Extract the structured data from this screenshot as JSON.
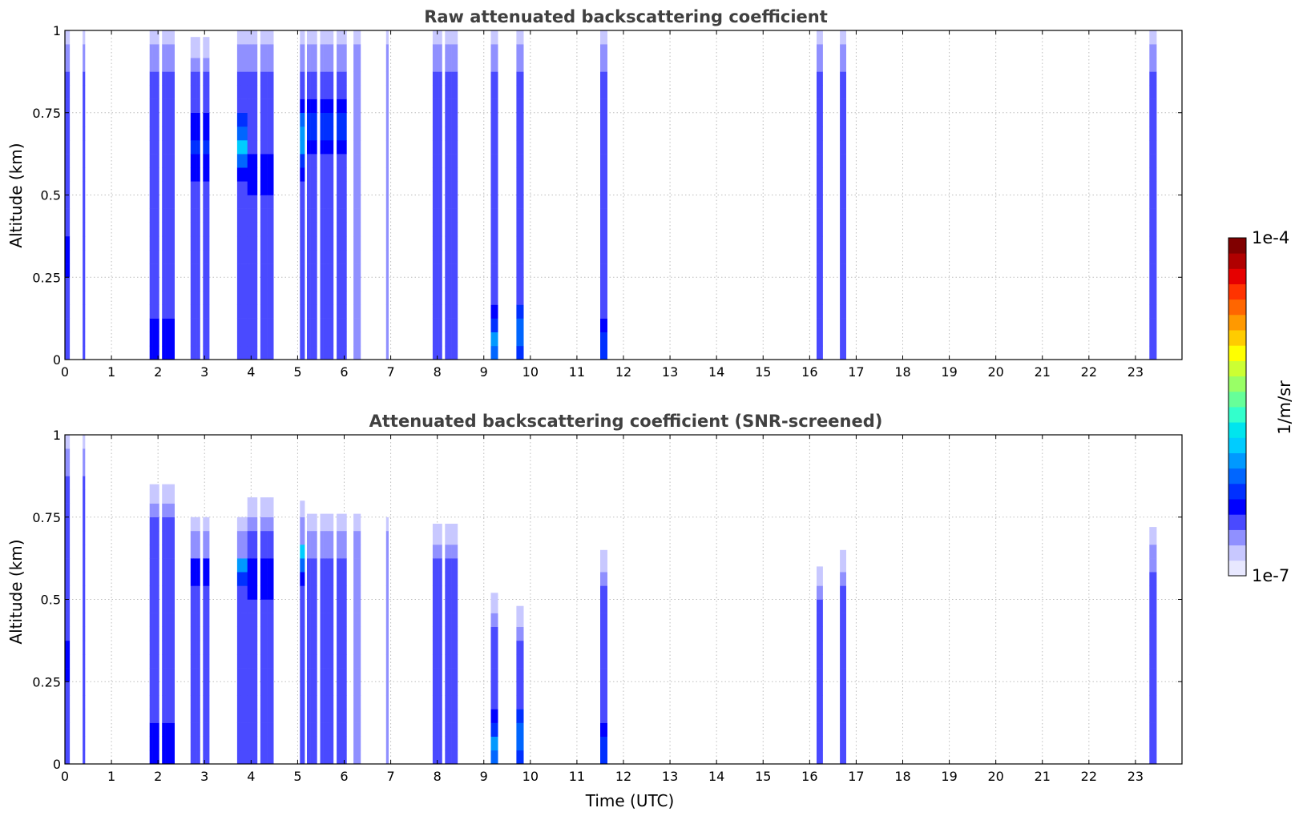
{
  "chart_data": [
    {
      "type": "heatmap",
      "title": "Raw attenuated backscattering coefficient",
      "xlabel": "",
      "ylabel": "Altitude (km)",
      "xlim": [
        0,
        24
      ],
      "ylim": [
        0,
        1
      ],
      "xticks": [
        "0",
        "1",
        "2",
        "3",
        "4",
        "5",
        "6",
        "7",
        "8",
        "9",
        "10",
        "11",
        "12",
        "13",
        "14",
        "15",
        "16",
        "17",
        "18",
        "19",
        "20",
        "21",
        "22",
        "23"
      ],
      "yticks": [
        "0",
        "0.25",
        "0.5",
        "0.75",
        "1"
      ],
      "grid": true,
      "colorscale": "jet (log)",
      "clim": [
        "1e-7",
        "1e-4"
      ],
      "segments": [
        {
          "t0": 0.0,
          "t1": 0.1,
          "top": 1.0,
          "base": 3,
          "peak": 4,
          "peak_alt": 0.3
        },
        {
          "t0": 0.38,
          "t1": 0.43,
          "top": 1.0,
          "base": 3,
          "peak": 3,
          "peak_alt": 0.1
        },
        {
          "t0": 1.82,
          "t1": 2.42,
          "top": 1.0,
          "base": 3,
          "peak": 4,
          "peak_alt": 0.05
        },
        {
          "t0": 2.7,
          "t1": 3.1,
          "top": 0.98,
          "base": 3,
          "peak": 5,
          "peak_alt": 0.65
        },
        {
          "t0": 3.7,
          "t1": 3.92,
          "top": 1.0,
          "base": 3,
          "peak": 8,
          "peak_alt": 0.65
        },
        {
          "t0": 3.92,
          "t1": 4.55,
          "top": 1.0,
          "base": 3,
          "peak": 4,
          "peak_alt": 0.55
        },
        {
          "t0": 5.05,
          "t1": 5.15,
          "top": 1.0,
          "base": 3,
          "peak": 8,
          "peak_alt": 0.67
        },
        {
          "t0": 5.2,
          "t1": 6.05,
          "top": 1.0,
          "base": 3,
          "peak": 5,
          "peak_alt": 0.7
        },
        {
          "t0": 6.2,
          "t1": 6.35,
          "top": 1.0,
          "base": 2,
          "peak": 2,
          "peak_alt": 0.5
        },
        {
          "t0": 6.9,
          "t1": 6.95,
          "top": 1.0,
          "base": 2,
          "peak": 2,
          "peak_alt": 0.5
        },
        {
          "t0": 7.9,
          "t1": 8.5,
          "top": 1.0,
          "base": 3,
          "peak": 3,
          "peak_alt": 0.3
        },
        {
          "t0": 9.15,
          "t1": 9.3,
          "top": 1.0,
          "base": 3,
          "peak": 7,
          "peak_alt": 0.05
        },
        {
          "t0": 9.7,
          "t1": 9.85,
          "top": 1.0,
          "base": 3,
          "peak": 7,
          "peak_alt": 0.08
        },
        {
          "t0": 11.5,
          "t1": 11.65,
          "top": 1.0,
          "base": 3,
          "peak": 5,
          "peak_alt": 0.05
        },
        {
          "t0": 16.15,
          "t1": 16.28,
          "top": 1.0,
          "base": 3,
          "peak": 3,
          "peak_alt": 0.2
        },
        {
          "t0": 16.65,
          "t1": 16.78,
          "top": 1.0,
          "base": 3,
          "peak": 3,
          "peak_alt": 0.2
        },
        {
          "t0": 23.3,
          "t1": 23.45,
          "top": 1.0,
          "base": 3,
          "peak": 3,
          "peak_alt": 0.2
        }
      ]
    },
    {
      "type": "heatmap",
      "title": "Attenuated backscattering coefficient (SNR-screened)",
      "xlabel": "Time (UTC)",
      "ylabel": "Altitude (km)",
      "xlim": [
        0,
        24
      ],
      "ylim": [
        0,
        1
      ],
      "xticks": [
        "0",
        "1",
        "2",
        "3",
        "4",
        "5",
        "6",
        "7",
        "8",
        "9",
        "10",
        "11",
        "12",
        "13",
        "14",
        "15",
        "16",
        "17",
        "18",
        "19",
        "20",
        "21",
        "22",
        "23"
      ],
      "yticks": [
        "0",
        "0.25",
        "0.5",
        "0.75",
        "1"
      ],
      "grid": true,
      "colorscale": "jet (log)",
      "clim": [
        "1e-7",
        "1e-4"
      ],
      "segments": [
        {
          "t0": 0.0,
          "t1": 0.1,
          "top": 1.0,
          "base": 3,
          "peak": 4,
          "peak_alt": 0.3
        },
        {
          "t0": 0.38,
          "t1": 0.43,
          "top": 1.0,
          "base": 3,
          "peak": 3,
          "peak_alt": 0.1
        },
        {
          "t0": 1.82,
          "t1": 2.42,
          "top": 0.85,
          "base": 3,
          "peak": 4,
          "peak_alt": 0.05
        },
        {
          "t0": 2.7,
          "t1": 3.1,
          "top": 0.75,
          "base": 3,
          "peak": 5,
          "peak_alt": 0.65
        },
        {
          "t0": 3.7,
          "t1": 3.92,
          "top": 0.75,
          "base": 3,
          "peak": 9,
          "peak_alt": 0.65
        },
        {
          "t0": 3.92,
          "t1": 4.55,
          "top": 0.81,
          "base": 3,
          "peak": 4,
          "peak_alt": 0.55
        },
        {
          "t0": 5.05,
          "t1": 5.15,
          "top": 0.8,
          "base": 3,
          "peak": 9,
          "peak_alt": 0.67
        },
        {
          "t0": 5.2,
          "t1": 6.05,
          "top": 0.76,
          "base": 3,
          "peak": 5,
          "peak_alt": 0.7
        },
        {
          "t0": 6.2,
          "t1": 6.35,
          "top": 0.76,
          "base": 2,
          "peak": 2,
          "peak_alt": 0.5
        },
        {
          "t0": 6.9,
          "t1": 6.95,
          "top": 0.75,
          "base": 2,
          "peak": 2,
          "peak_alt": 0.5
        },
        {
          "t0": 7.9,
          "t1": 8.5,
          "top": 0.73,
          "base": 3,
          "peak": 3,
          "peak_alt": 0.3
        },
        {
          "t0": 9.15,
          "t1": 9.3,
          "top": 0.52,
          "base": 3,
          "peak": 7,
          "peak_alt": 0.05
        },
        {
          "t0": 9.7,
          "t1": 9.85,
          "top": 0.48,
          "base": 3,
          "peak": 7,
          "peak_alt": 0.08
        },
        {
          "t0": 11.5,
          "t1": 11.65,
          "top": 0.65,
          "base": 3,
          "peak": 5,
          "peak_alt": 0.05
        },
        {
          "t0": 16.15,
          "t1": 16.28,
          "top": 0.6,
          "base": 3,
          "peak": 3,
          "peak_alt": 0.2
        },
        {
          "t0": 16.65,
          "t1": 16.78,
          "top": 0.65,
          "base": 3,
          "peak": 3,
          "peak_alt": 0.2
        },
        {
          "t0": 23.3,
          "t1": 23.45,
          "top": 0.72,
          "base": 3,
          "peak": 3,
          "peak_alt": 0.2
        }
      ]
    }
  ],
  "colorbar": {
    "max_label": "1e-4",
    "min_label": "1e-7",
    "unit_label": "1/m/sr",
    "colors": [
      "#e8e8ff",
      "#c8c8ff",
      "#9090ff",
      "#4a4aff",
      "#0000ff",
      "#0030ff",
      "#0066ff",
      "#0099ff",
      "#00ccff",
      "#00e5ee",
      "#33ffcc",
      "#66ff99",
      "#99ff66",
      "#ccff33",
      "#ffff00",
      "#ffcc00",
      "#ff9900",
      "#ff6600",
      "#ff3300",
      "#e60000",
      "#b00000",
      "#800000"
    ]
  }
}
